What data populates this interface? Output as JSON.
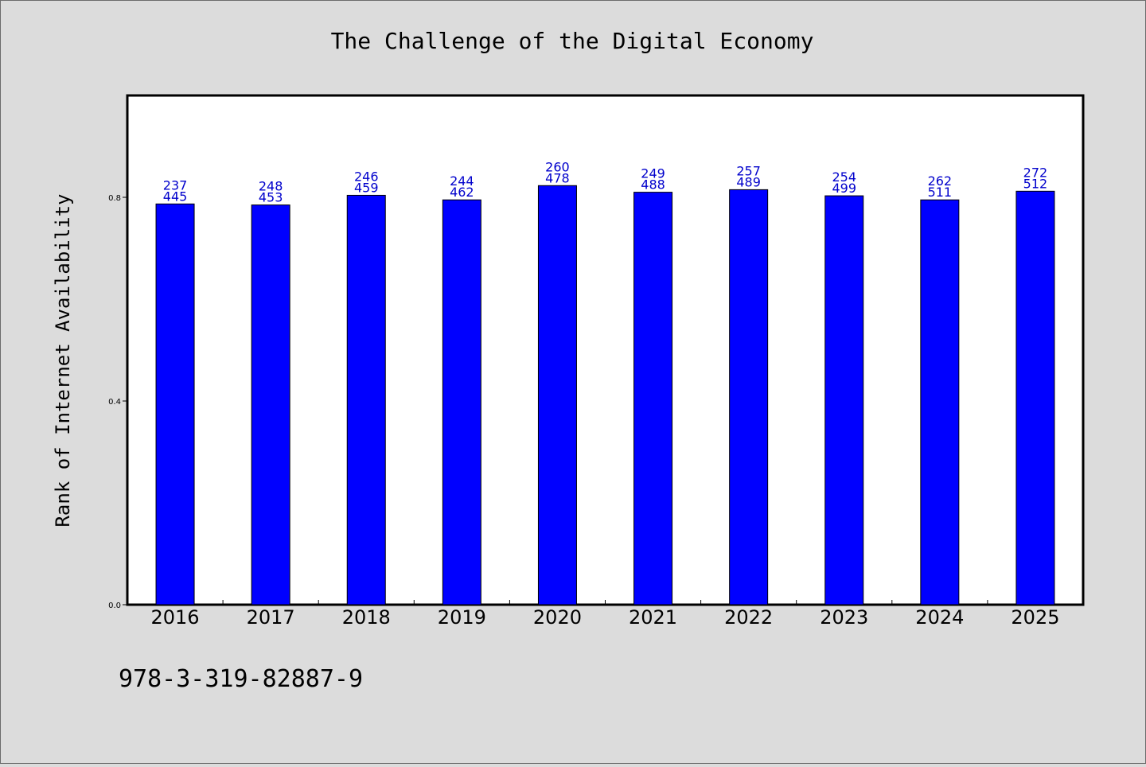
{
  "chart_data": {
    "type": "bar",
    "title": "The Challenge of the Digital Economy",
    "xlabel": "",
    "ylabel": "Rank of Internet Availability",
    "categories": [
      "2016",
      "2017",
      "2018",
      "2019",
      "2020",
      "2021",
      "2022",
      "2023",
      "2024",
      "2025"
    ],
    "values": [
      0.787,
      0.785,
      0.804,
      0.795,
      0.823,
      0.81,
      0.815,
      0.803,
      0.795,
      0.812
    ],
    "labels_top": [
      "237",
      "248",
      "246",
      "244",
      "260",
      "249",
      "257",
      "254",
      "262",
      "272"
    ],
    "labels_bottom": [
      "445",
      "453",
      "459",
      "462",
      "478",
      "488",
      "489",
      "499",
      "511",
      "512"
    ],
    "ylim": [
      0,
      1.0
    ],
    "yticks": [
      "0.0",
      "0.4",
      "0.8"
    ],
    "grid": false,
    "colors": {
      "bar": "#0000ff",
      "data_label": "#0000cc",
      "background": "#dcdcdc",
      "plot": "#ffffff"
    }
  },
  "footer": {
    "isbn": "978-3-319-82887-9"
  }
}
